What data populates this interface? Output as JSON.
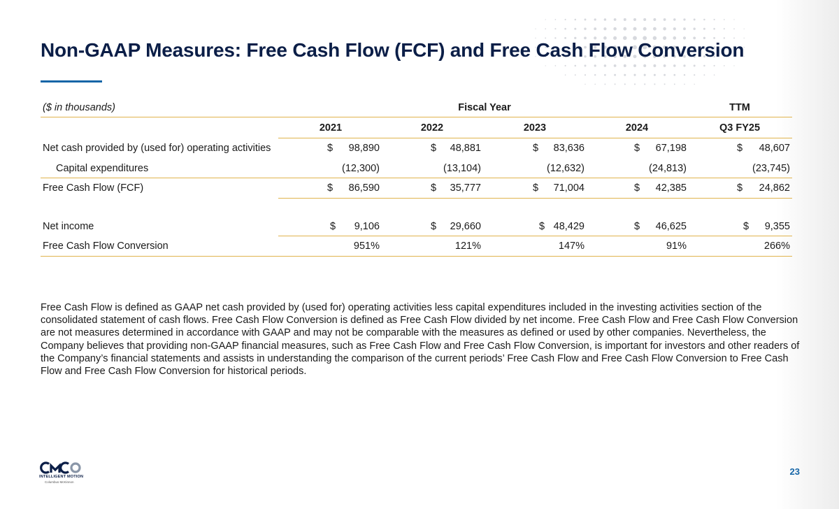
{
  "title": "Non-GAAP Measures: Free Cash Flow (FCF) and Free Cash Flow Conversion",
  "table": {
    "units_label": "($ in thousands)",
    "group_fiscal": "Fiscal Year",
    "group_ttm": "TTM",
    "columns": [
      "2021",
      "2022",
      "2023",
      "2024",
      "Q3 FY25"
    ],
    "rows": {
      "operating": {
        "label": "Net cash provided by (used for) operating activities",
        "values": [
          "98,890",
          "48,881",
          "83,636",
          "67,198",
          "48,607"
        ]
      },
      "capex": {
        "label": "Capital expenditures",
        "values": [
          "(12,300)",
          "(13,104)",
          "(12,632)",
          "(24,813)",
          "(23,745)"
        ]
      },
      "fcf": {
        "label": "Free Cash Flow (FCF)",
        "values": [
          "86,590",
          "35,777",
          "71,004",
          "42,385",
          "24,862"
        ]
      },
      "net_income": {
        "label": "Net income",
        "values": [
          "9,106",
          "29,660",
          "48,429",
          "46,625",
          "9,355"
        ]
      },
      "conversion": {
        "label": "Free Cash Flow Conversion",
        "values": [
          "951%",
          "121%",
          "147%",
          "91%",
          "266%"
        ]
      }
    },
    "currency_symbol": "$"
  },
  "note": "Free Cash Flow is defined as GAAP net cash provided by (used for) operating activities less capital expenditures included in the investing activities section of the consolidated statement of cash flows. Free Cash Flow Conversion is defined as Free Cash Flow divided by net income.  Free Cash Flow and Free Cash Flow Conversion are not measures determined in accordance with GAAP and may not be comparable with the measures as defined or used by other companies.  Nevertheless, the Company believes that providing non-GAAP financial measures, such as Free Cash Flow and Free Cash Flow Conversion, is important for investors and other readers of the Company’s financial statements and assists in understanding the comparison of the current periods’ Free Cash Flow and Free Cash Flow Conversion to Free Cash Flow and Free Cash Flow Conversion for historical periods.",
  "logo": {
    "tagline": "INTELLIGENT MOTION",
    "subline": "Columbus McKinnon"
  },
  "page_number": "23",
  "colors": {
    "title": "#0b1e47",
    "accent_blue": "#1565a7",
    "gold_rule": "#e0b34d"
  }
}
